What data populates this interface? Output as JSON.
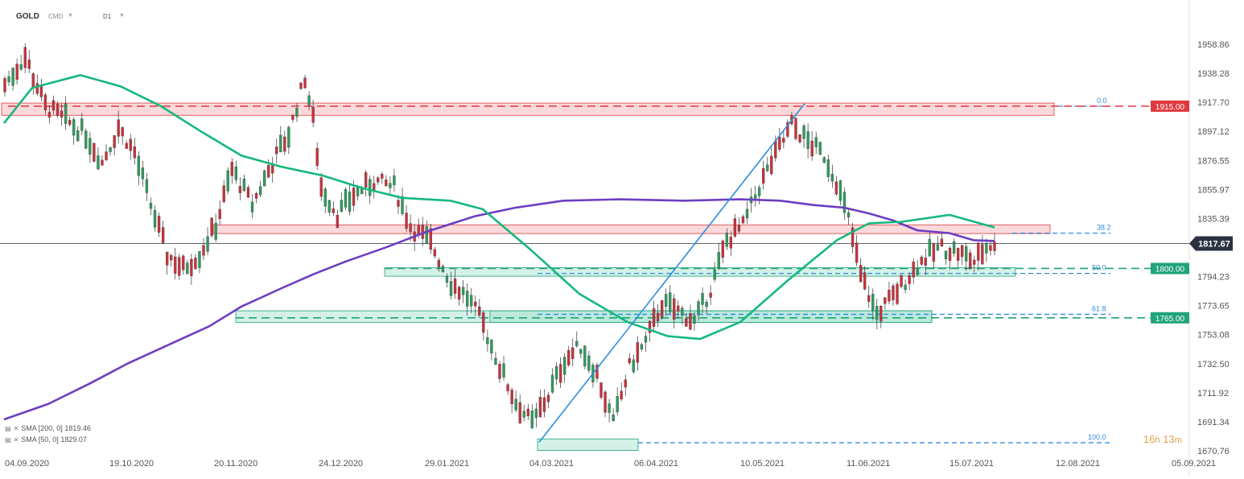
{
  "header": {
    "symbol": "GOLD",
    "source": "CMD",
    "timeframe": "D1"
  },
  "legend": [
    {
      "label": "SMA [200, 0]",
      "value": "1819.46"
    },
    {
      "label": "SMA [50, 0]",
      "value": "1829.07"
    }
  ],
  "timer": {
    "h_value": "16",
    "h_unit": "h",
    "m_value": "13",
    "m_unit": "m"
  },
  "chart_data": {
    "type": "candlestick",
    "y_ticks": [
      "1958.86",
      "1938.28",
      "1917.70",
      "1897.12",
      "1876.55",
      "1855.97",
      "1835.39",
      "1814.81",
      "1794.23",
      "1773.65",
      "1753.08",
      "1732.50",
      "1711.92",
      "1691.34",
      "1670.76"
    ],
    "ylim": [
      1670.76,
      1958.86
    ],
    "x_ticks": [
      "04.09.2020",
      "19.10.2020",
      "20.11.2020",
      "24.12.2020",
      "29.01.2021",
      "04.03.2021",
      "06.04.2021",
      "10.05.2021",
      "11.06.2021",
      "15.07.2021",
      "12.08.2021",
      "05.09.2021"
    ],
    "current_price": "1817.67",
    "price_labels": [
      {
        "value": 1915.0,
        "text": "1915.00",
        "color": "#e0393e"
      },
      {
        "value": 1800.0,
        "text": "1800.00",
        "color": "#1fa37a"
      },
      {
        "value": 1765.0,
        "text": "1765.00",
        "color": "#1fa37a"
      }
    ],
    "fibonacci": [
      {
        "level": "0.0",
        "price": 1915.0
      },
      {
        "level": "38.2",
        "price": 1825.0
      },
      {
        "level": "50.0",
        "price": 1796.5
      },
      {
        "level": "61.8",
        "price": 1767.5
      },
      {
        "level": "100.0",
        "price": 1676.5
      }
    ],
    "zones": [
      {
        "kind": "resistance",
        "from": 1908.5,
        "to": 1917.2
      },
      {
        "kind": "resistance",
        "from": 1824.7,
        "to": 1830.9
      },
      {
        "kind": "support",
        "from": 1794.5,
        "to": 1800.5
      },
      {
        "kind": "support",
        "from": 1761.8,
        "to": 1770.0
      },
      {
        "kind": "support",
        "from": 1671.0,
        "to": 1679.2
      }
    ],
    "trendline": {
      "from": 1676.8,
      "to": 1916.8
    },
    "series": [
      {
        "name": "SMA [200, 0]",
        "color": "#6c3ec2",
        "values": [
          1693,
          1704,
          1718,
          1733,
          1746,
          1759,
          1773,
          1786,
          1796,
          1805,
          1815,
          1826,
          1837,
          1843,
          1848,
          1849,
          1848,
          1849,
          1848,
          1845,
          1843,
          1839,
          1834,
          1827,
          1825,
          1820,
          1819.46
        ]
      },
      {
        "name": "SMA [50, 0]",
        "color": "#16b87e",
        "values": [
          1903,
          1928,
          1937,
          1929,
          1915,
          1897,
          1880,
          1872,
          1866,
          1857,
          1850,
          1848,
          1842,
          1813,
          1782,
          1762,
          1752,
          1750,
          1762,
          1792,
          1820,
          1832,
          1833,
          1838,
          1829.07
        ]
      }
    ]
  }
}
